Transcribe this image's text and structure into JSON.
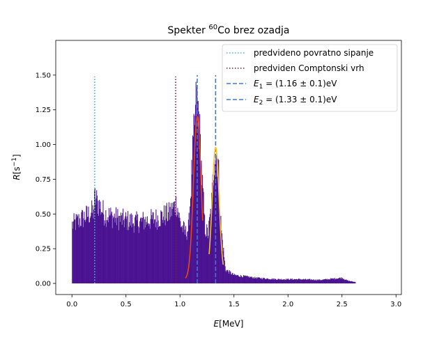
{
  "chart_data": {
    "type": "bar",
    "title": "Spekter ⁶⁰Co brez ozadja",
    "title_main": "Spekter ",
    "title_sup": "60",
    "title_rest": "Co brez ozadja",
    "xlabel": "E[MeV]",
    "xlabel_var": "E",
    "xlabel_unit": "[MeV]",
    "ylabel": "R[s⁻¹]",
    "ylabel_var": "R",
    "ylabel_unit_open": "[s",
    "ylabel_unit_sup": "−1",
    "ylabel_unit_close": "]",
    "xlim": [
      -0.15,
      3.05
    ],
    "ylim": [
      -0.08,
      1.75
    ],
    "xticks": [
      0.0,
      0.5,
      1.0,
      1.5,
      2.0,
      2.5,
      3.0
    ],
    "xtick_labels": [
      "0.0",
      "0.5",
      "1.0",
      "1.5",
      "2.0",
      "2.5",
      "3.0"
    ],
    "yticks": [
      0.0,
      0.25,
      0.5,
      0.75,
      1.0,
      1.25,
      1.5
    ],
    "ytick_labels": [
      "0.00",
      "0.25",
      "0.50",
      "0.75",
      "1.00",
      "1.25",
      "1.50"
    ],
    "grid": false,
    "legend_position": "top-right",
    "histogram": {
      "name": "spekter",
      "color": "#4b1391",
      "bin_width": 0.005,
      "profile_x": [
        0.0,
        0.1,
        0.2,
        0.21,
        0.3,
        0.45,
        0.6,
        0.75,
        0.9,
        0.97,
        1.0,
        1.05,
        1.08,
        1.12,
        1.15,
        1.17,
        1.2,
        1.23,
        1.26,
        1.29,
        1.32,
        1.35,
        1.38,
        1.42,
        1.5,
        1.7,
        1.9,
        2.1,
        2.3,
        2.5,
        2.55,
        2.62
      ],
      "profile_y": [
        0.42,
        0.47,
        0.52,
        0.62,
        0.5,
        0.46,
        0.44,
        0.46,
        0.5,
        0.58,
        0.44,
        0.36,
        0.4,
        0.95,
        1.3,
        1.25,
        0.8,
        0.4,
        0.35,
        0.55,
        0.95,
        0.9,
        0.4,
        0.1,
        0.06,
        0.04,
        0.03,
        0.03,
        0.025,
        0.04,
        0.02,
        0.01
      ],
      "noise": 0.1
    },
    "fits": [
      {
        "name": "fit_1",
        "color": "#e8480e",
        "mu": 1.16,
        "sigma": 0.035,
        "amp": 1.17,
        "offset": 0.03,
        "x_range": [
          1.05,
          1.21
        ]
      },
      {
        "name": "fit_2",
        "color": "#f2c12e",
        "mu": 1.33,
        "sigma": 0.032,
        "amp": 0.93,
        "offset": 0.05,
        "x_range": [
          1.27,
          1.4
        ]
      }
    ],
    "vlines": [
      {
        "key": "povratno",
        "x": 0.21,
        "ymin": 0.0,
        "ymax": 1.49,
        "color": "#1fc8d4",
        "style": "dotted"
      },
      {
        "key": "compton",
        "x": 0.96,
        "ymin": 0.0,
        "ymax": 1.49,
        "color": "#7a1a2e",
        "style": "dotted"
      },
      {
        "key": "e1",
        "x": 1.16,
        "ymin": 0.0,
        "ymax": 1.5,
        "color": "#3a78d6",
        "style": "dashed"
      },
      {
        "key": "e2",
        "x": 1.33,
        "ymin": 0.0,
        "ymax": 1.5,
        "color": "#3a78d6",
        "style": "dashed"
      }
    ],
    "legend": [
      {
        "label": "predvideno povratno sipanje",
        "color": "#1fc8d4",
        "style": "dotted"
      },
      {
        "label": "predviden Comptonski vrh",
        "color": "#7a1a2e",
        "style": "dotted"
      },
      {
        "label": "E₁ = (1.16 ± 0.1)eV",
        "var": "E",
        "sub": "1",
        "rest": " = (1.16 ± 0.1)eV",
        "color": "#3a78d6",
        "style": "dashed"
      },
      {
        "label": "E₂ = (1.33 ± 0.1)eV",
        "var": "E",
        "sub": "2",
        "rest": " = (1.33 ± 0.1)eV",
        "color": "#3a78d6",
        "style": "dashed"
      }
    ]
  }
}
